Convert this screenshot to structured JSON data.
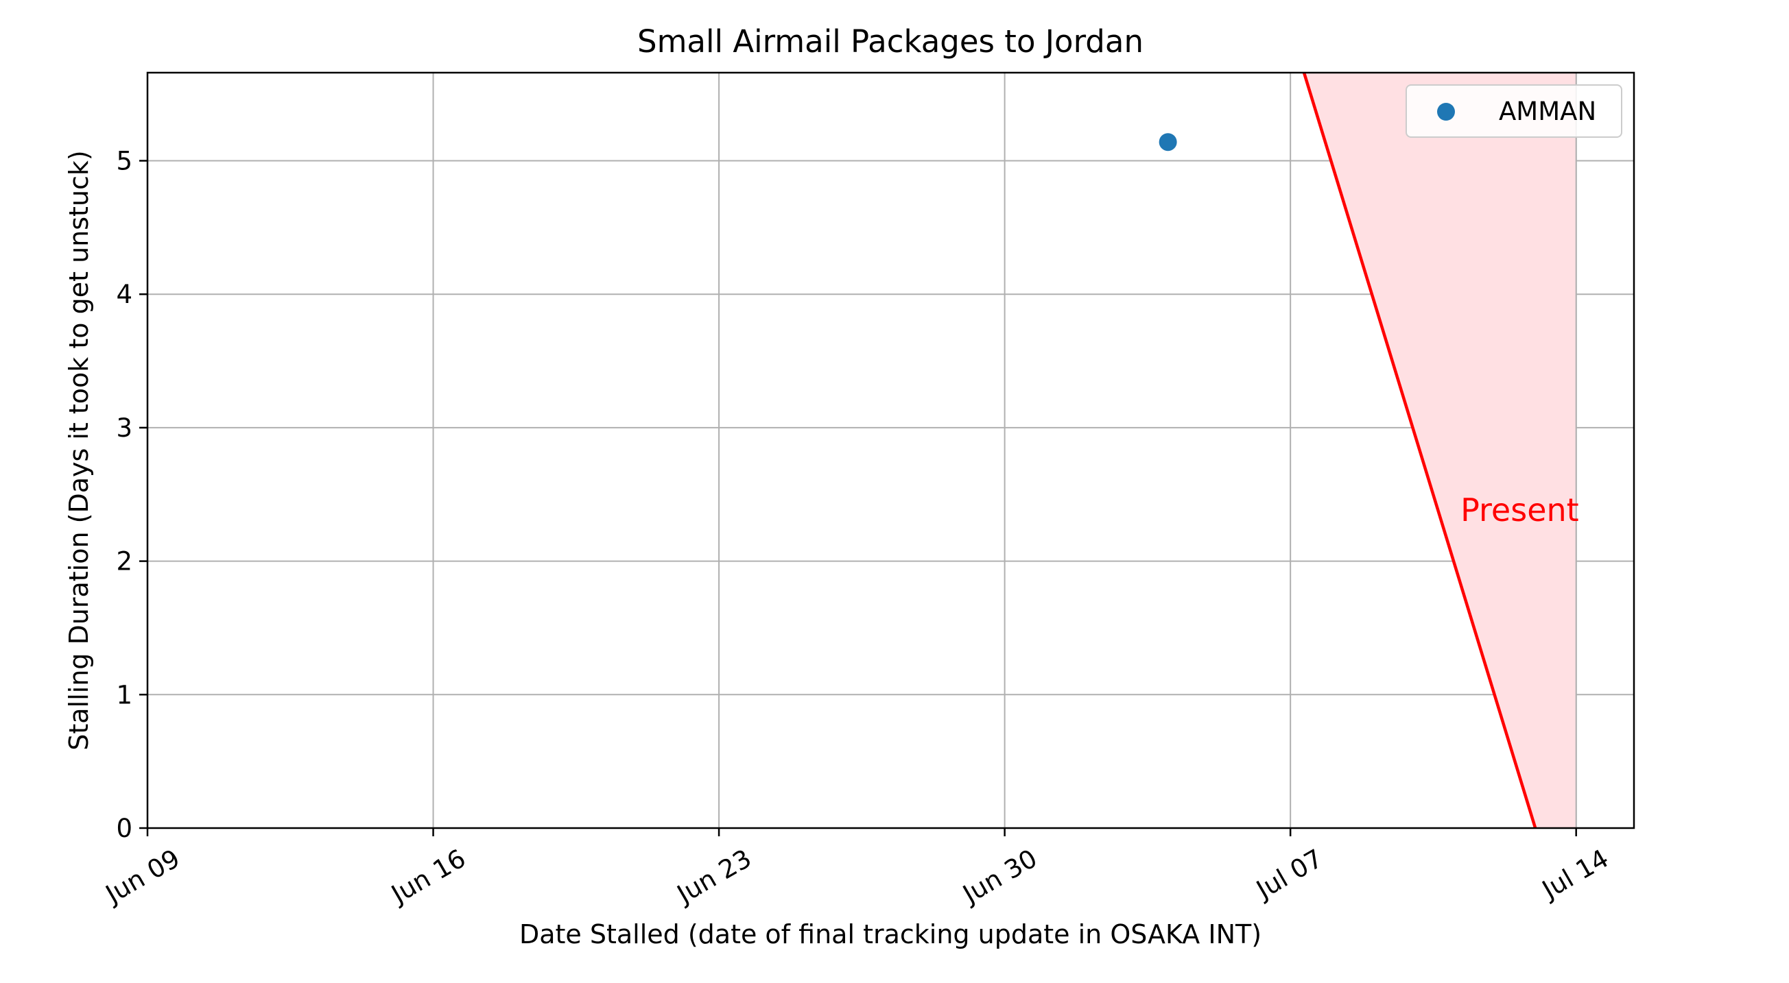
{
  "chart_data": {
    "type": "scatter",
    "title": "Small Airmail Packages to Jordan",
    "xlabel": "Date Stalled (date of final tracking update in OSAKA INT)",
    "ylabel": "Stalling Duration (Days it took to get unstuck)",
    "x_axis_type": "date",
    "xlim": [
      "2024-06-09",
      "2024-07-15T10:00"
    ],
    "ylim": [
      0,
      5.66
    ],
    "x_ticks": [
      {
        "date": "2024-06-09",
        "label": "Jun 09"
      },
      {
        "date": "2024-06-16",
        "label": "Jun 16"
      },
      {
        "date": "2024-06-23",
        "label": "Jun 23"
      },
      {
        "date": "2024-06-30",
        "label": "Jun 30"
      },
      {
        "date": "2024-07-07",
        "label": "Jul 07"
      },
      {
        "date": "2024-07-14",
        "label": "Jul 14"
      }
    ],
    "y_ticks": [
      0,
      1,
      2,
      3,
      4,
      5
    ],
    "grid": true,
    "legend": {
      "placement": "top-right",
      "entries": [
        "AMMAN"
      ]
    },
    "series": [
      {
        "name": "AMMAN",
        "color": "#1f77b4",
        "points": [
          {
            "x": "2024-07-04",
            "y": 5.14
          }
        ]
      }
    ],
    "present_line": {
      "label": "Present",
      "color": "#ff0000",
      "fill_color": "#ffe0e3",
      "from": {
        "x": "2024-07-07T08:00",
        "y": 5.66
      },
      "to": {
        "x": "2024-07-13",
        "y": 0
      },
      "label_at": {
        "x": "2024-07-11T04:00",
        "y": 2.3
      }
    }
  }
}
